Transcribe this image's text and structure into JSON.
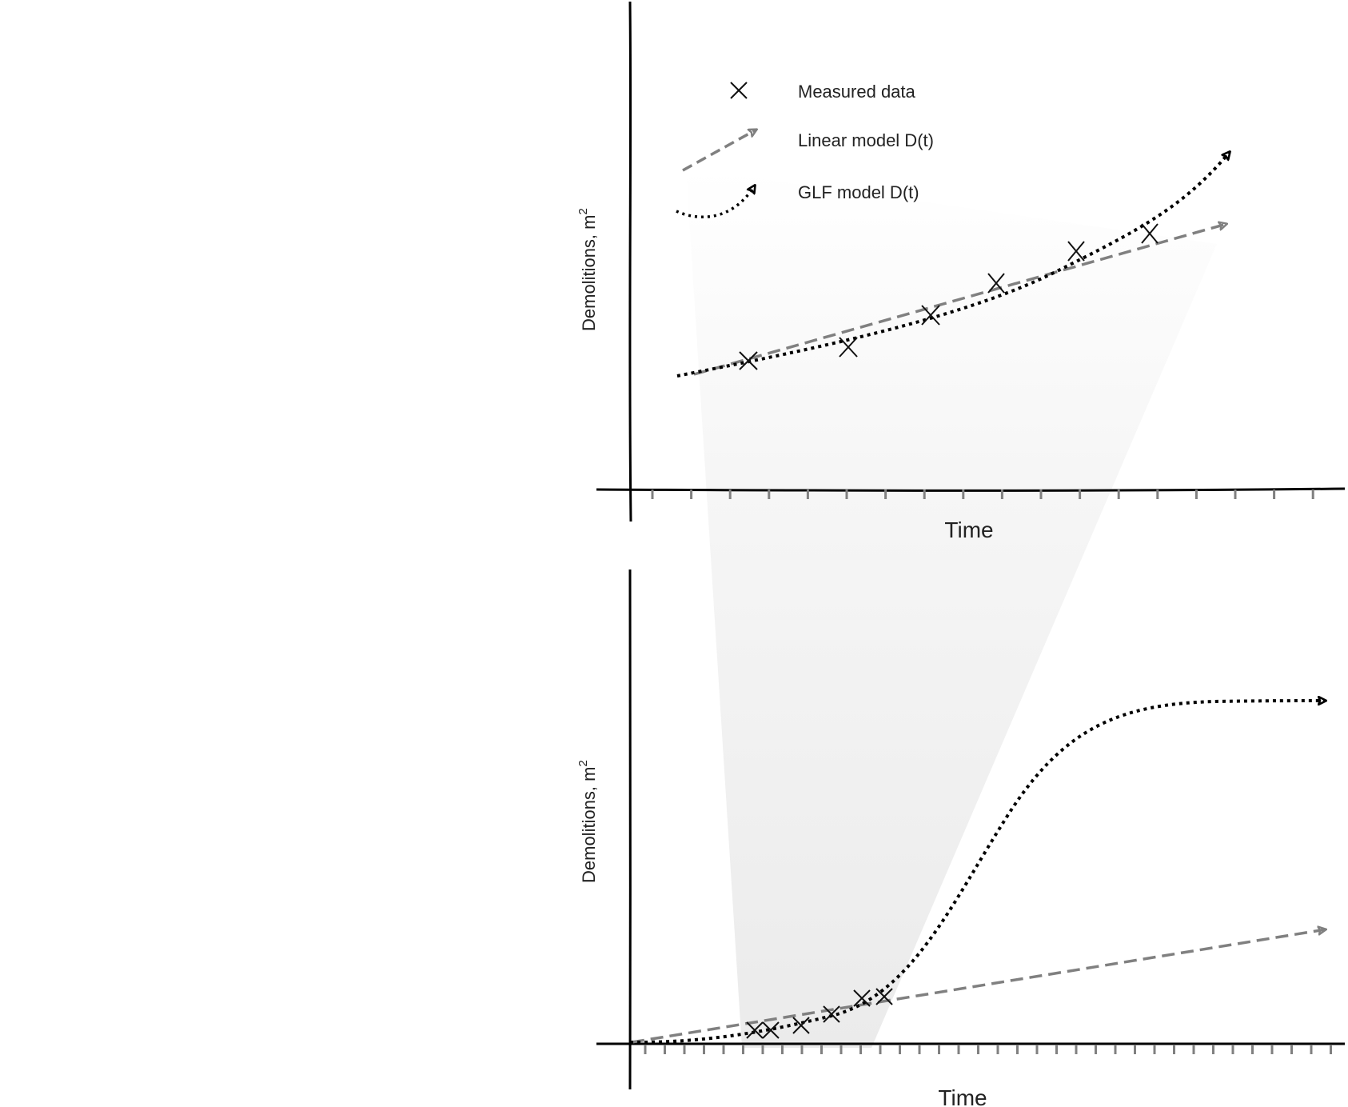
{
  "legend": {
    "measured": "Measured data",
    "linear": "Linear model D(t)",
    "glf": "GLF model D(t)"
  },
  "top_panel": {
    "xlabel": "Time",
    "ylabel_main": "Demolitions, m",
    "ylabel_sup": "2"
  },
  "bottom_panel": {
    "xlabel": "Time",
    "ylabel_main": "Demolitions, m",
    "ylabel_sup": "2"
  },
  "colors": {
    "measured": "#111111",
    "linear": "#808080",
    "glf": "#000000",
    "zoom_band": "#ececec"
  },
  "icons": [
    "cross-marker-icon",
    "dashed-arrow-icon",
    "dotted-arrow-icon"
  ]
}
